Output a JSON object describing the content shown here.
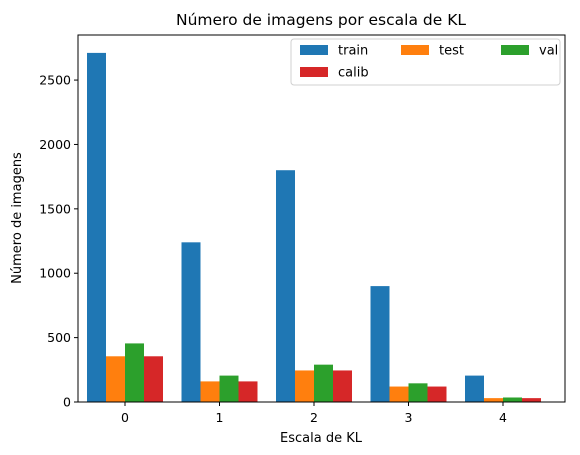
{
  "chart_data": {
    "type": "bar",
    "title": "Número de imagens por escala de KL",
    "xlabel": "Escala de KL",
    "ylabel": "Número de imagens",
    "categories": [
      "0",
      "1",
      "2",
      "3",
      "4"
    ],
    "ylim": [
      0,
      2850
    ],
    "yticks": [
      0,
      500,
      1000,
      1500,
      2000,
      2500
    ],
    "grid": false,
    "legend_position": "top-right",
    "legend_columns": 3,
    "series": [
      {
        "name": "train",
        "color": "#1f77b4",
        "values": [
          2711,
          1240,
          1800,
          900,
          205
        ]
      },
      {
        "name": "test",
        "color": "#ff7f0e",
        "values": [
          355,
          160,
          245,
          120,
          30
        ]
      },
      {
        "name": "val",
        "color": "#2ca02c",
        "values": [
          455,
          205,
          290,
          145,
          35
        ]
      },
      {
        "name": "calib",
        "color": "#d62728",
        "values": [
          355,
          160,
          245,
          120,
          30
        ]
      }
    ]
  }
}
